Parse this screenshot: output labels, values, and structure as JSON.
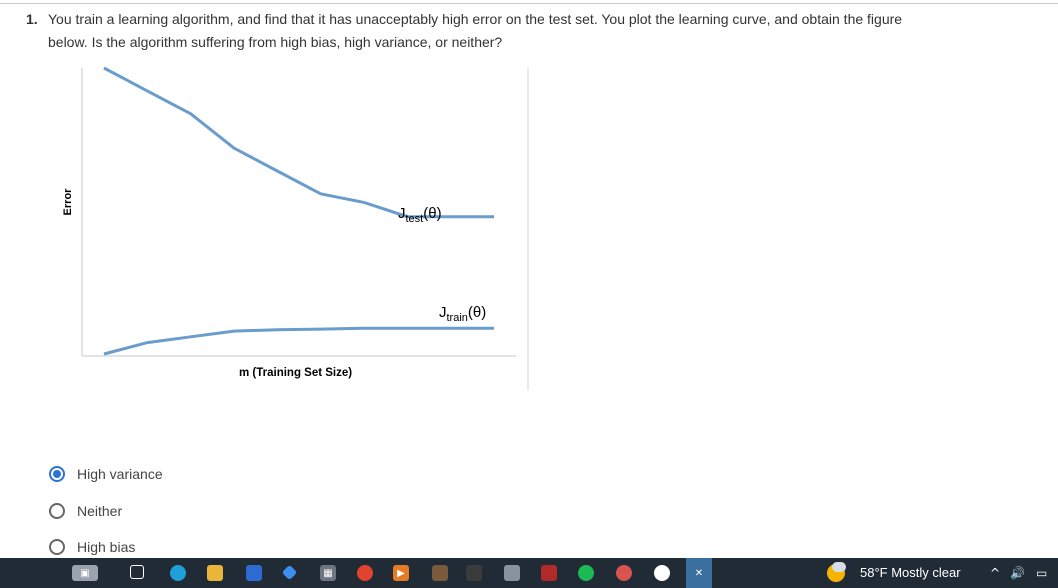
{
  "question": {
    "number": "1.",
    "line1": "You train a learning algorithm, and find that it has unacceptably high error on the test set. You plot the learning curve, and obtain the figure",
    "line2": "below. Is the algorithm suffering from high bias, high variance, or neither?"
  },
  "chart_data": {
    "type": "line",
    "xlabel": "m (Training Set Size)",
    "ylabel": "Error",
    "x": [
      0,
      1,
      2,
      3,
      4,
      5,
      6,
      7,
      8,
      9
    ],
    "series": [
      {
        "name": "Jtest(θ)",
        "values": [
          100,
          92,
          84,
          72,
          64,
          56,
          53,
          48,
          48,
          48
        ]
      },
      {
        "name": "Jtrain(θ)",
        "values": [
          0,
          4,
          6,
          8,
          8.5,
          8.7,
          9,
          9,
          9,
          9
        ]
      }
    ],
    "labels": {
      "test_main": "J",
      "test_sub": "test",
      "test_arg": "(θ)",
      "train_main": "J",
      "train_sub": "train",
      "train_arg": "(θ)"
    },
    "colors": {
      "line": "#6a9ccc",
      "axis": "#c8c8c8"
    }
  },
  "options": [
    {
      "label": "High variance",
      "checked": true
    },
    {
      "label": "Neither",
      "checked": false
    },
    {
      "label": "High bias",
      "checked": false
    }
  ],
  "taskbar": {
    "icons": [
      "camera-icon",
      "task-view-icon",
      "edge-icon",
      "file-explorer-icon",
      "store-icon",
      "app-icon",
      "calculator-icon",
      "chrome-icon",
      "media-icon",
      "game-icon",
      "terminal-icon",
      "photo-icon",
      "video-icon",
      "spotify-icon",
      "browser-icon",
      "obs-icon",
      "vscode-icon"
    ],
    "weather": "58°F  Mostly clear"
  }
}
